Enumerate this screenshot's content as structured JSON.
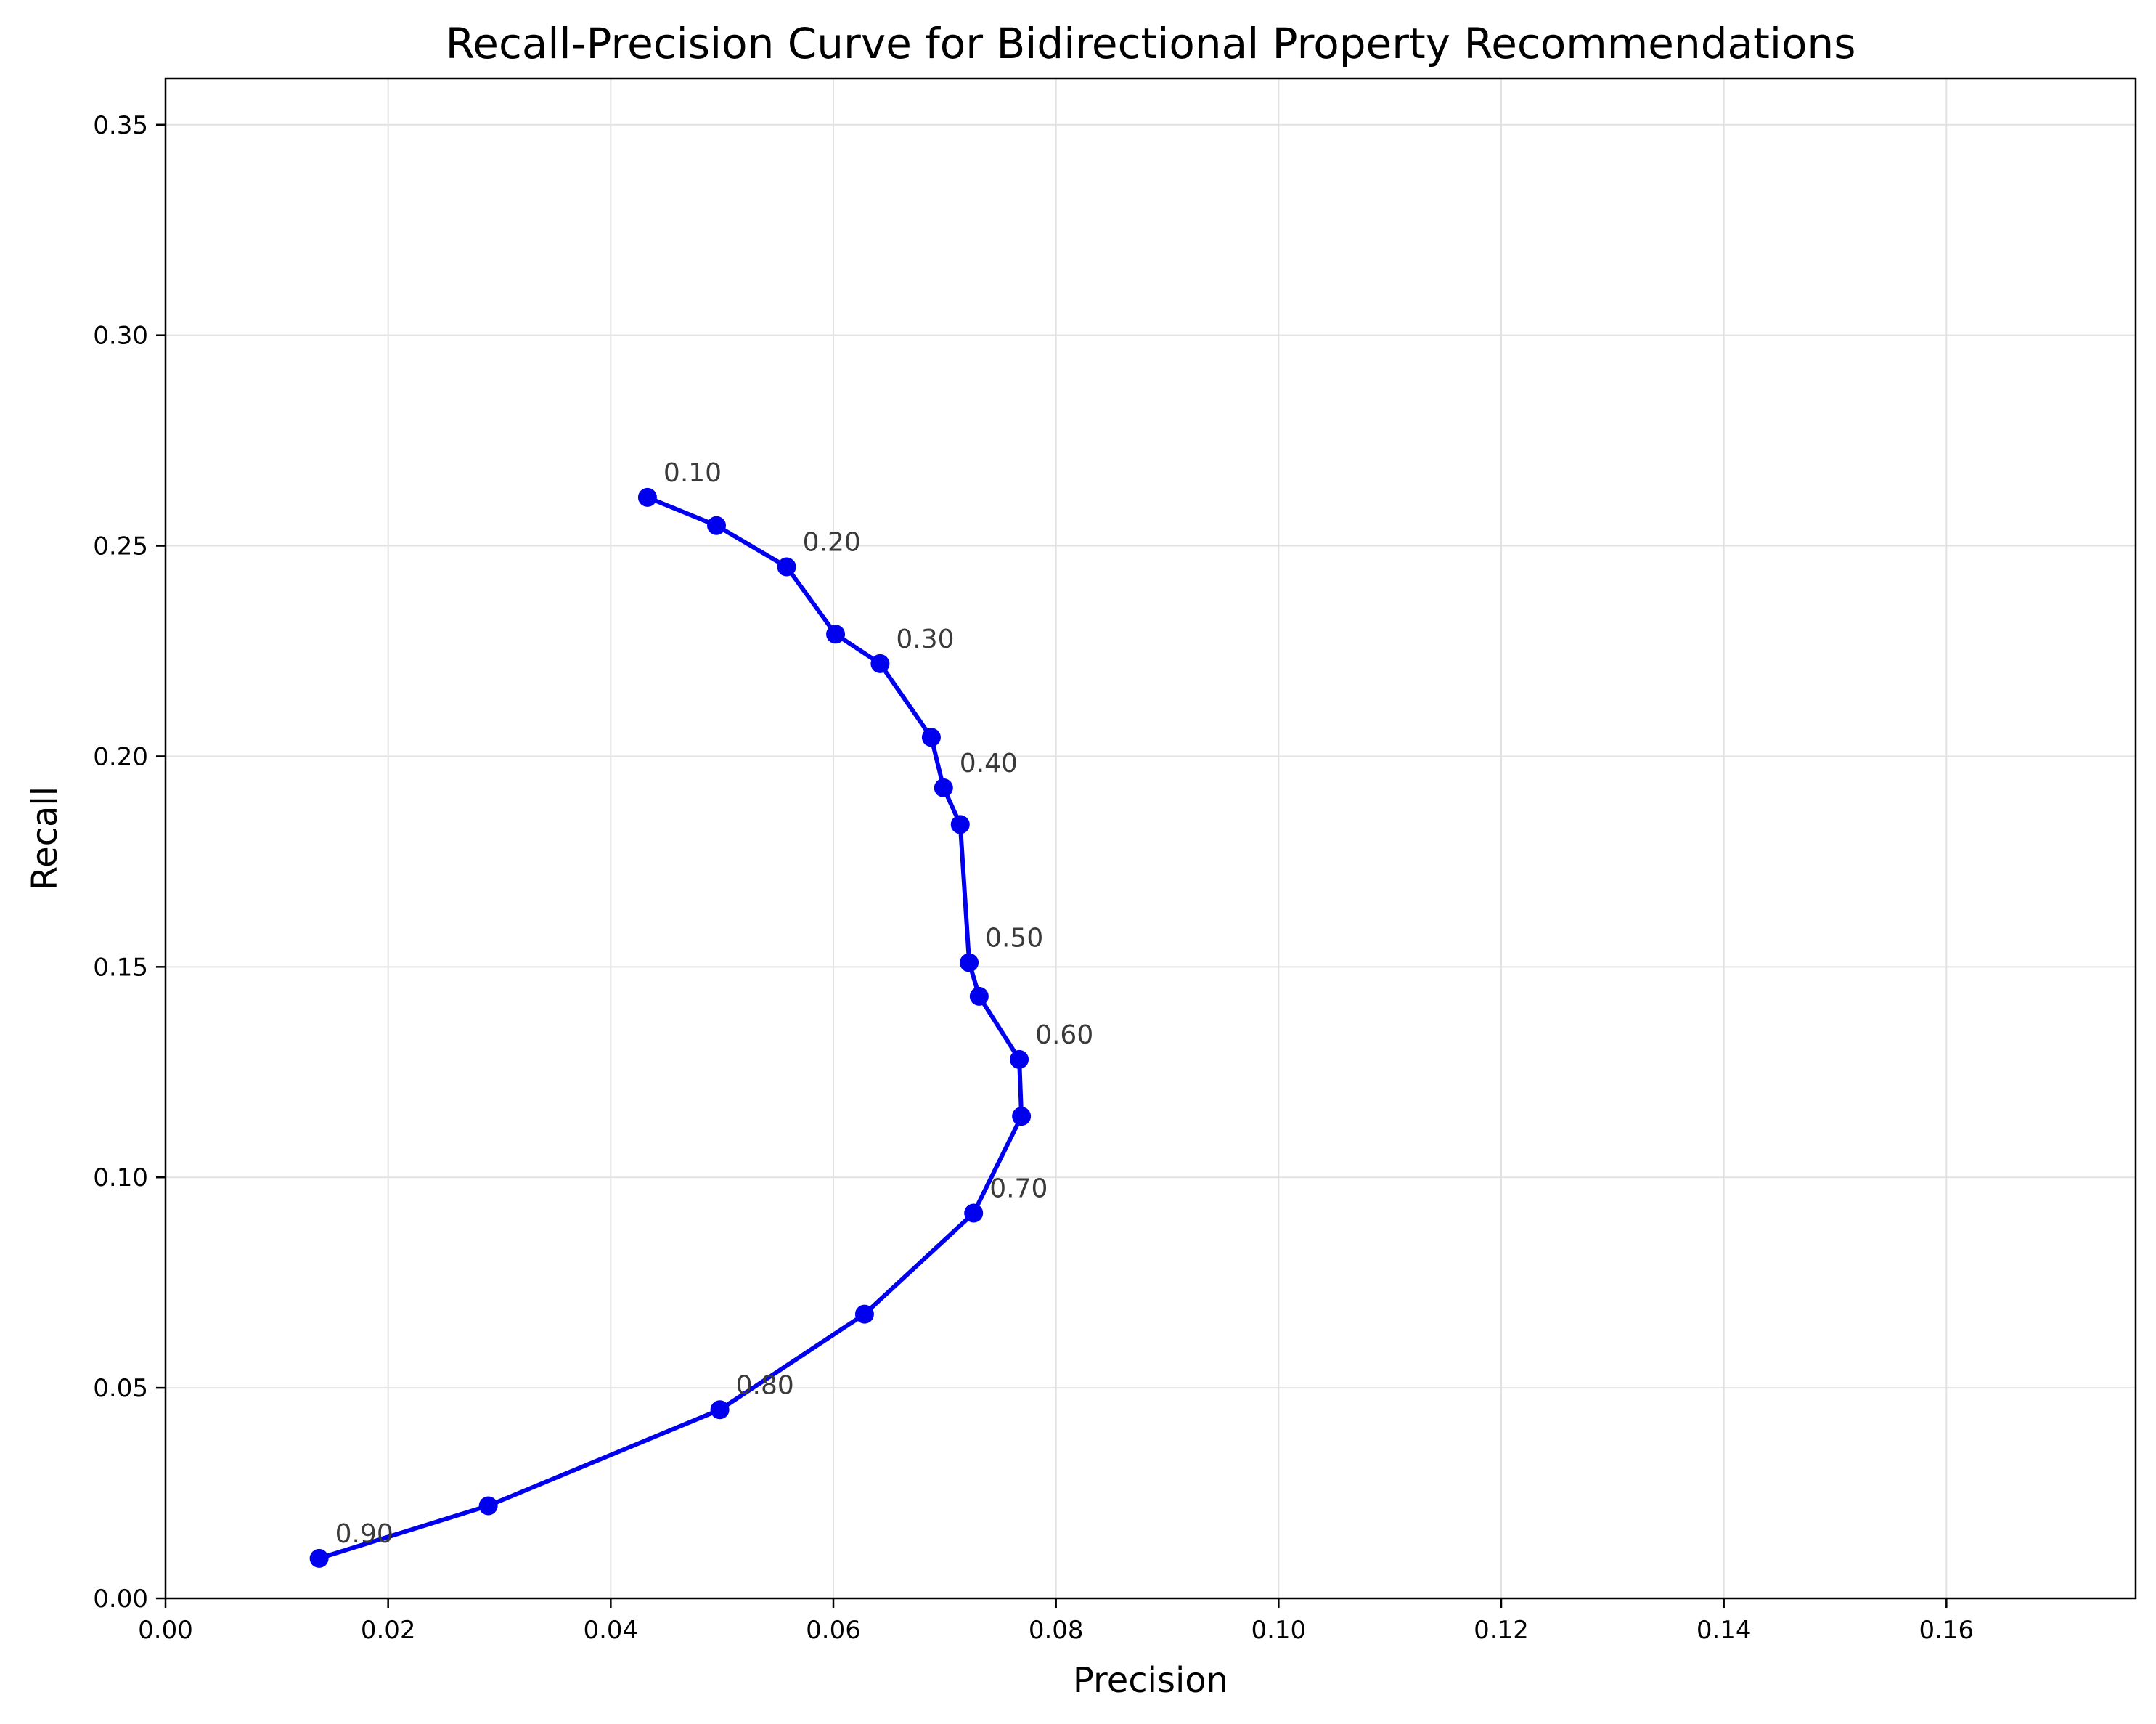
{
  "chart_data": {
    "type": "line",
    "title": "Recall-Precision Curve for Bidirectional Property Recommendations",
    "xlabel": "Precision",
    "ylabel": "Recall",
    "xlim": [
      0,
      0.177
    ],
    "ylim": [
      0,
      0.361
    ],
    "xticks": [
      0.0,
      0.02,
      0.04,
      0.06,
      0.08,
      0.1,
      0.12,
      0.14,
      0.16
    ],
    "xtick_labels": [
      "0.00",
      "0.02",
      "0.04",
      "0.06",
      "0.08",
      "0.10",
      "0.12",
      "0.14",
      "0.16"
    ],
    "yticks": [
      0.0,
      0.05,
      0.1,
      0.15,
      0.2,
      0.25,
      0.3,
      0.35
    ],
    "ytick_labels": [
      "0.00",
      "0.05",
      "0.10",
      "0.15",
      "0.20",
      "0.25",
      "0.30",
      "0.35"
    ],
    "grid": true,
    "color": "#0000ee",
    "series": [
      {
        "x": [
          0.0433,
          0.0495,
          0.0558,
          0.0602,
          0.0642,
          0.0688,
          0.0699,
          0.0714,
          0.0722,
          0.0731,
          0.0767,
          0.0769,
          0.0726,
          0.0628,
          0.0498,
          0.029,
          0.0138
        ],
        "y": [
          0.2615,
          0.2548,
          0.245,
          0.229,
          0.222,
          0.2045,
          0.1925,
          0.1838,
          0.151,
          0.143,
          0.128,
          0.1145,
          0.0915,
          0.0675,
          0.0448,
          0.022,
          0.0095
        ]
      }
    ],
    "annotations": [
      {
        "text": "0.10",
        "x": 0.0433,
        "y": 0.2615
      },
      {
        "text": "0.20",
        "x": 0.0558,
        "y": 0.245
      },
      {
        "text": "0.30",
        "x": 0.0642,
        "y": 0.222
      },
      {
        "text": "0.40",
        "x": 0.0699,
        "y": 0.1925
      },
      {
        "text": "0.50",
        "x": 0.0722,
        "y": 0.151
      },
      {
        "text": "0.60",
        "x": 0.0767,
        "y": 0.128
      },
      {
        "text": "0.70",
        "x": 0.0726,
        "y": 0.0915
      },
      {
        "text": "0.80",
        "x": 0.0498,
        "y": 0.0448
      },
      {
        "text": "0.90",
        "x": 0.0138,
        "y": 0.0095
      }
    ]
  }
}
